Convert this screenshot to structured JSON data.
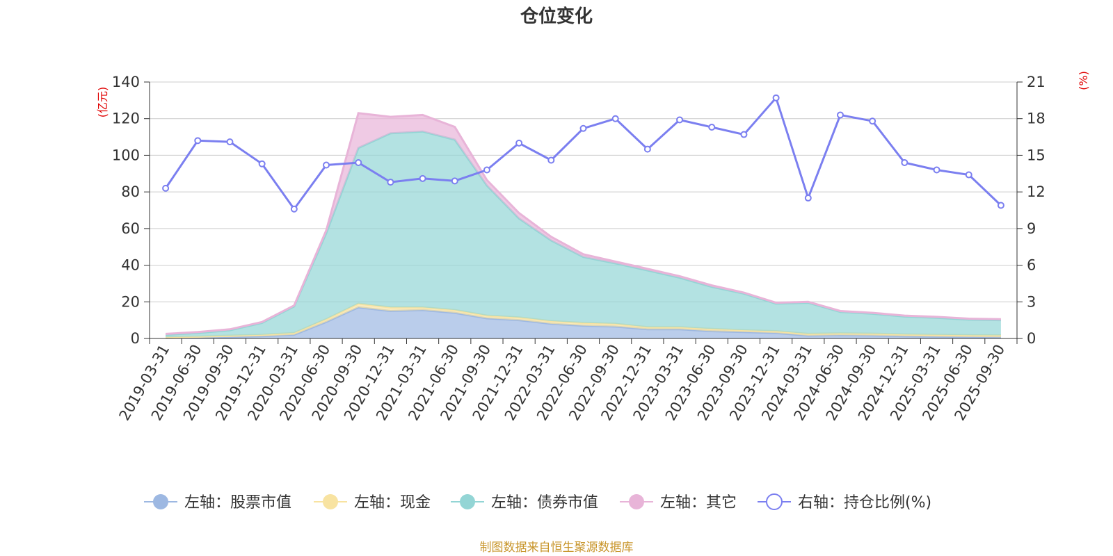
{
  "chart_data": {
    "type": "area",
    "title": "仓位变化",
    "left_axis": {
      "unit": "(亿元)",
      "ylim": [
        0,
        140
      ],
      "ticks": [
        0,
        20,
        40,
        60,
        80,
        100,
        120,
        140
      ]
    },
    "right_axis": {
      "unit": "(%)",
      "ylim": [
        0,
        21
      ],
      "ticks": [
        0,
        3,
        6,
        9,
        12,
        15,
        18,
        21
      ]
    },
    "categories": [
      "2019-03-31",
      "2019-06-30",
      "2019-09-30",
      "2019-12-31",
      "2020-03-31",
      "2020-06-30",
      "2020-09-30",
      "2020-12-31",
      "2021-03-31",
      "2021-06-30",
      "2021-09-30",
      "2021-12-31",
      "2022-03-31",
      "2022-06-30",
      "2022-09-30",
      "2022-12-31",
      "2023-03-31",
      "2023-06-30",
      "2023-09-30",
      "2023-12-31",
      "2024-03-31",
      "2024-06-30",
      "2024-09-30",
      "2024-12-31",
      "2025-03-31",
      "2025-06-30",
      "2025-09-30"
    ],
    "series": [
      {
        "name": "左轴：股票市值",
        "axis": "left",
        "stack": true,
        "color": "#9db8e2",
        "values": [
          0.3,
          0.5,
          0.8,
          1.2,
          2,
          9,
          17,
          15,
          15.5,
          14,
          11,
          10,
          8,
          7,
          6.5,
          5,
          5,
          4,
          3.5,
          3,
          1.5,
          1.8,
          1.6,
          1.2,
          1,
          0.8,
          0.7
        ]
      },
      {
        "name": "左轴：现金",
        "axis": "left",
        "stack": true,
        "color": "#f8e3a1",
        "values": [
          0.4,
          0.5,
          0.7,
          0.8,
          1,
          1.5,
          2,
          2,
          1.5,
          1.5,
          1.5,
          1.5,
          1.5,
          1.5,
          1.5,
          1.2,
          1.2,
          1.2,
          1,
          1,
          1,
          1,
          1,
          1,
          1,
          1,
          1
        ]
      },
      {
        "name": "左轴：债券市值",
        "axis": "left",
        "stack": true,
        "color": "#93d5d5",
        "values": [
          1.3,
          2,
          3,
          6.5,
          14.5,
          47,
          85,
          95,
          96,
          93,
          71,
          54,
          44,
          36,
          33,
          31,
          27,
          23,
          20,
          15,
          17,
          11.7,
          10.9,
          9.8,
          9.3,
          8.5,
          8.3
        ]
      },
      {
        "name": "左轴：其它",
        "axis": "left",
        "stack": true,
        "color": "#e8b4d8",
        "values": [
          0.5,
          0.5,
          0.5,
          0.5,
          0.5,
          1.5,
          19,
          9,
          9,
          7,
          3,
          3,
          2,
          1.5,
          1,
          0.8,
          0.8,
          0.8,
          0.5,
          0.5,
          0.5,
          0.5,
          0.5,
          0.5,
          0.5,
          0.5,
          0.5
        ]
      },
      {
        "name": "右轴：持仓比例(%)",
        "axis": "right",
        "stack": false,
        "color": "#7b7ff0",
        "values": [
          12.3,
          16.2,
          16.1,
          14.3,
          10.6,
          14.2,
          14.4,
          12.8,
          13.1,
          12.9,
          13.8,
          16,
          14.6,
          17.2,
          18,
          15.5,
          17.9,
          17.3,
          16.7,
          19.7,
          11.5,
          18.3,
          17.8,
          14.4,
          13.8,
          13.4,
          10.9
        ]
      }
    ],
    "grid": true,
    "legend_position": "bottom"
  },
  "source_text": "制图数据来自恒生聚源数据库"
}
